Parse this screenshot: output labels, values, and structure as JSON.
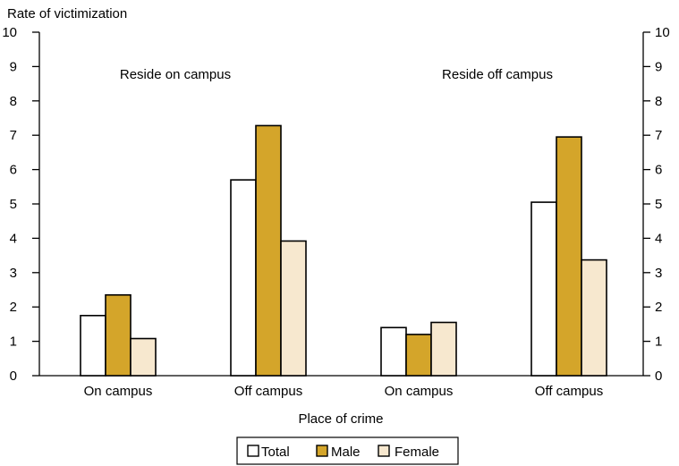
{
  "chart_data": {
    "type": "bar",
    "ylabel": "Rate of victimization",
    "xlabel": "Place of crime",
    "ylim": [
      0,
      10
    ],
    "yticks": [
      0,
      1,
      2,
      3,
      4,
      5,
      6,
      7,
      8,
      9,
      10
    ],
    "groups": [
      "Reside on campus",
      "Reside off campus"
    ],
    "categories": [
      "On campus",
      "Off campus",
      "On campus",
      "Off campus"
    ],
    "series": [
      {
        "name": "Total",
        "values": [
          1.75,
          5.7,
          1.4,
          5.05
        ]
      },
      {
        "name": "Male",
        "values": [
          2.35,
          7.28,
          1.2,
          6.95
        ]
      },
      {
        "name": "Female",
        "values": [
          1.08,
          3.92,
          1.55,
          3.37
        ]
      }
    ],
    "colors": {
      "Total": "#ffffff",
      "Male": "#d4a52a",
      "Female": "#f7e8cf"
    },
    "grid": false,
    "legend": "bottom-center"
  }
}
